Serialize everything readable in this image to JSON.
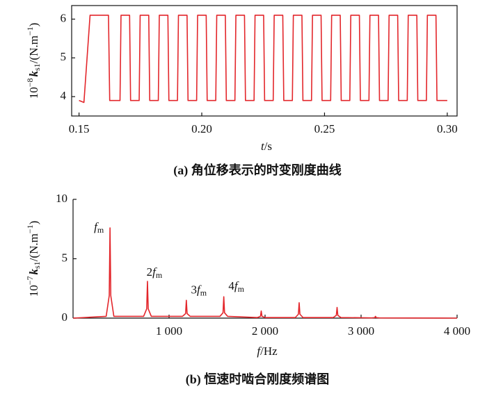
{
  "chart_data": [
    {
      "type": "line",
      "caption": "(a) 角位移表示的时变刚度曲线",
      "xlabel": {
        "symbol": "t",
        "unit": "/s"
      },
      "ylabel": {
        "prefix": "10",
        "prefix_sup": "−8",
        "symbol": "k",
        "symbol_sub": "s1",
        "unit": "/(N.m",
        "unit_sup": "−1",
        "close": ")"
      },
      "xlim": [
        0.147,
        0.304
      ],
      "ylim": [
        3.5,
        6.35
      ],
      "xticks": [
        0.15,
        {
          "value": 0.2,
          "label": "0.20"
        },
        0.25,
        {
          "value": 0.3,
          "label": "0.30"
        }
      ],
      "yticks": [
        4,
        5,
        6
      ],
      "frame": true,
      "series": [
        {
          "color": "#e3262b",
          "x": [
            0.15,
            0.152,
            0.1545,
            0.162,
            0.1625,
            0.1667,
            0.1671,
            0.1706,
            0.171,
            0.1745,
            0.1749,
            0.1784,
            0.1788,
            0.1823,
            0.1827,
            0.1862,
            0.1866,
            0.1901,
            0.1905,
            0.194,
            0.1944,
            0.1979,
            0.1983,
            0.2018,
            0.2022,
            0.2057,
            0.2061,
            0.2096,
            0.21,
            0.2135,
            0.2139,
            0.2174,
            0.2178,
            0.2213,
            0.2217,
            0.2252,
            0.2256,
            0.2291,
            0.2295,
            0.233,
            0.2334,
            0.2369,
            0.2373,
            0.2408,
            0.2412,
            0.2447,
            0.2451,
            0.2486,
            0.249,
            0.2525,
            0.2529,
            0.2564,
            0.2568,
            0.2603,
            0.2607,
            0.2642,
            0.2646,
            0.2681,
            0.2685,
            0.272,
            0.2724,
            0.2759,
            0.2763,
            0.2798,
            0.2802,
            0.2837,
            0.2841,
            0.2876,
            0.288,
            0.2915,
            0.2919,
            0.2954,
            0.2958,
            0.3
          ],
          "values": [
            3.9,
            3.85,
            6.1,
            6.1,
            3.9,
            3.9,
            6.1,
            6.1,
            3.9,
            3.9,
            6.1,
            6.1,
            3.9,
            3.9,
            6.1,
            6.1,
            3.9,
            3.9,
            6.1,
            6.1,
            3.9,
            3.9,
            6.1,
            6.1,
            3.9,
            3.9,
            6.1,
            6.1,
            3.9,
            3.9,
            6.1,
            6.1,
            3.9,
            3.9,
            6.1,
            6.1,
            3.9,
            3.9,
            6.1,
            6.1,
            3.9,
            3.9,
            6.1,
            6.1,
            3.9,
            3.9,
            6.1,
            6.1,
            3.9,
            3.9,
            6.1,
            6.1,
            3.9,
            3.9,
            6.1,
            6.1,
            3.9,
            3.9,
            6.1,
            6.1,
            3.9,
            3.9,
            6.1,
            6.1,
            3.9,
            3.9,
            6.1,
            6.1,
            3.9,
            3.9,
            6.1,
            6.1,
            3.9,
            3.9
          ]
        }
      ]
    },
    {
      "type": "line",
      "caption": "(b) 恒速时啮合刚度频谱图",
      "xlabel": {
        "symbol": "f",
        "unit": "/Hz"
      },
      "ylabel": {
        "prefix": "10",
        "prefix_sup": "−7",
        "symbol": "k",
        "symbol_sub": "s1",
        "unit": "/(N.m",
        "unit_sup": "−1",
        "close": ")"
      },
      "xlim": [
        0,
        4000
      ],
      "ylim": [
        0,
        10
      ],
      "xticks": [
        {
          "value": 1000,
          "label": "1 000"
        },
        {
          "value": 2000,
          "label": "2 000"
        },
        {
          "value": 3000,
          "label": "3 000"
        },
        {
          "value": 4000,
          "label": "4 000"
        }
      ],
      "yticks": [
        0,
        5,
        10
      ],
      "frame": false,
      "annotations": [
        {
          "prefix": "",
          "symbol": "f",
          "sub": "m"
        },
        {
          "prefix": "2",
          "symbol": "f",
          "sub": "m"
        },
        {
          "prefix": "3",
          "symbol": "f",
          "sub": "m"
        },
        {
          "prefix": "4",
          "symbol": "f",
          "sub": "m"
        }
      ],
      "series": [
        {
          "color": "#e3262b",
          "x": [
            0,
            345,
            377,
            385,
            393,
            425,
            735,
            767,
            775,
            783,
            815,
            1140,
            1172,
            1180,
            1188,
            1220,
            1530,
            1562,
            1570,
            1578,
            1610,
            1920,
            1952,
            1960,
            1968,
            2000,
            2315,
            2347,
            2355,
            2363,
            2395,
            2710,
            2742,
            2750,
            2758,
            2790,
            3110,
            3142,
            3150,
            3158,
            3190,
            4000
          ],
          "values": [
            0,
            0.15,
            1.9,
            7.6,
            1.9,
            0.15,
            0.15,
            0.78,
            3.1,
            0.78,
            0.15,
            0.15,
            0.38,
            1.5,
            0.38,
            0.15,
            0.15,
            0.45,
            1.8,
            0.45,
            0.15,
            0.05,
            0.15,
            0.6,
            0.15,
            0.05,
            0.05,
            0.33,
            1.3,
            0.33,
            0.05,
            0.05,
            0.23,
            0.9,
            0.23,
            0.05,
            0.02,
            0.04,
            0.15,
            0.04,
            0.02,
            0
          ]
        }
      ]
    }
  ]
}
